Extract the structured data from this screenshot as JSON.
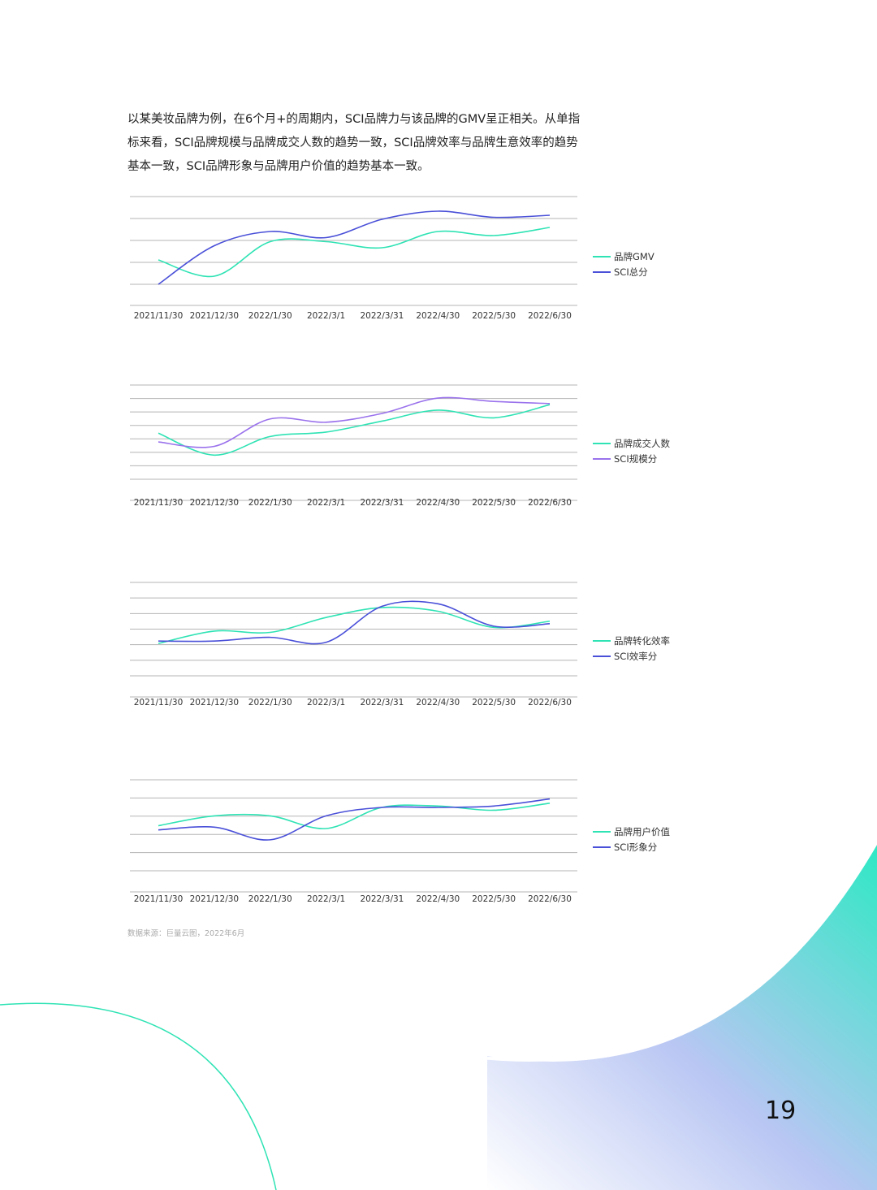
{
  "intro_text": "以某美妆品牌为例，在6个月+的周期内，SCI品牌力与该品牌的GMV呈正相关。从单指标来看，SCI品牌规模与品牌成交人数的趋势一致，SCI品牌效率与品牌生意效率的趋势基本一致，SCI品牌形象与品牌用户价值的趋势基本一致。",
  "source_note": "数据来源：巨量云图，2022年6月",
  "page_number": "19",
  "colors": {
    "green": "#2fe3b4",
    "blue": "#4a50d8",
    "purple": "#9a72ec",
    "grid": "#b5b5b5"
  },
  "chart_data": [
    {
      "type": "line",
      "categories": [
        "2021/11/30",
        "2021/12/30",
        "2022/1/30",
        "2022/3/1",
        "2022/3/31",
        "2022/4/30",
        "2022/5/30",
        "2022/6/30"
      ],
      "series": [
        {
          "name": "品牌GMV",
          "values": [
            1.2,
            0.4,
            2.1,
            2.1,
            1.8,
            2.6,
            2.4,
            2.8
          ]
        },
        {
          "name": "SCI总分",
          "values": [
            0.0,
            1.9,
            2.6,
            2.3,
            3.2,
            3.6,
            3.3,
            3.4
          ]
        }
      ],
      "ylim": [
        0,
        4
      ],
      "grid": true,
      "legend": "right"
    },
    {
      "type": "line",
      "categories": [
        "2021/11/30",
        "2021/12/30",
        "2022/1/30",
        "2022/3/1",
        "2022/3/31",
        "2022/4/30",
        "2022/5/30",
        "2022/6/30"
      ],
      "series": [
        {
          "name": "品牌成交人数",
          "values": [
            4.2,
            2.2,
            3.9,
            4.3,
            5.3,
            6.3,
            5.6,
            6.8
          ]
        },
        {
          "name": "SCI规模分",
          "values": [
            3.4,
            3.0,
            5.5,
            5.2,
            6.0,
            7.4,
            7.1,
            6.9
          ]
        }
      ],
      "ylim": [
        0,
        8
      ],
      "grid": true,
      "legend": "right"
    },
    {
      "type": "line",
      "categories": [
        "2021/11/30",
        "2021/12/30",
        "2022/1/30",
        "2022/3/1",
        "2022/3/31",
        "2022/4/30",
        "2022/5/30",
        "2022/6/30"
      ],
      "series": [
        {
          "name": "品牌转化效率",
          "values": [
            2.6,
            3.6,
            3.5,
            4.7,
            5.5,
            5.2,
            3.9,
            4.4
          ]
        },
        {
          "name": "SCI效率分",
          "values": [
            2.8,
            2.8,
            3.1,
            2.7,
            5.6,
            5.8,
            4.0,
            4.2
          ]
        }
      ],
      "ylim": [
        0,
        7
      ],
      "grid": true,
      "legend": "right"
    },
    {
      "type": "line",
      "categories": [
        "2021/11/30",
        "2021/12/30",
        "2022/1/30",
        "2022/3/1",
        "2022/3/31",
        "2022/4/30",
        "2022/5/30",
        "2022/6/30"
      ],
      "series": [
        {
          "name": "品牌用户价值",
          "values": [
            3.2,
            3.9,
            3.9,
            3.0,
            4.5,
            4.6,
            4.3,
            4.8
          ]
        },
        {
          "name": "SCI形象分",
          "values": [
            2.9,
            3.1,
            2.2,
            3.9,
            4.5,
            4.5,
            4.6,
            5.1
          ]
        }
      ],
      "ylim": [
        0,
        6
      ],
      "grid": true,
      "legend": "right"
    }
  ]
}
